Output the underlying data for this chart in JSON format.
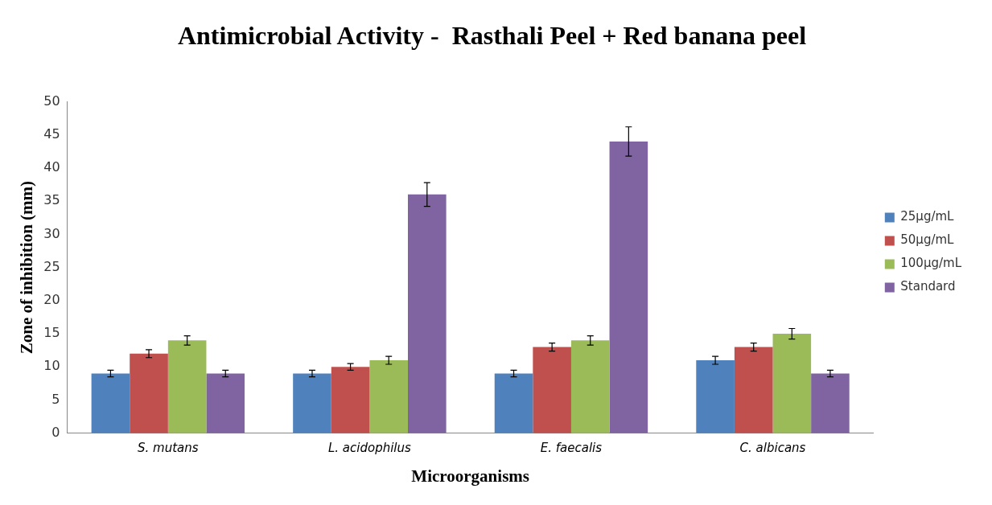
{
  "chart_data": {
    "type": "bar",
    "title": "Antimicrobial Activity -  Rasthali Peel + Red banana peel",
    "xlabel": "Microorganisms",
    "ylabel": "Zone of inhibition (mm)",
    "categories": [
      "S. mutans",
      "L. acidophilus",
      "E. faecalis",
      "C. albicans"
    ],
    "series": [
      {
        "name": "25µg/mL",
        "color": "#4f81bd",
        "values": [
          9,
          9,
          9,
          11
        ],
        "errors": [
          0.5,
          0.5,
          0.5,
          0.6
        ]
      },
      {
        "name": "50µg/mL",
        "color": "#c0504d",
        "values": [
          12,
          10,
          13,
          13
        ],
        "errors": [
          0.6,
          0.5,
          0.6,
          0.6
        ]
      },
      {
        "name": "100µg/mL",
        "color": "#9bbb59",
        "values": [
          14,
          11,
          14,
          15
        ],
        "errors": [
          0.7,
          0.6,
          0.7,
          0.8
        ]
      },
      {
        "name": "Standard",
        "color": "#8064a2",
        "values": [
          9,
          36,
          44,
          9
        ],
        "errors": [
          0.5,
          1.8,
          2.2,
          0.5
        ]
      }
    ],
    "ylim": [
      0,
      50
    ],
    "yticks": [
      0,
      5,
      10,
      15,
      20,
      25,
      30,
      35,
      40,
      45,
      50
    ],
    "grid": false,
    "legend": "right"
  }
}
